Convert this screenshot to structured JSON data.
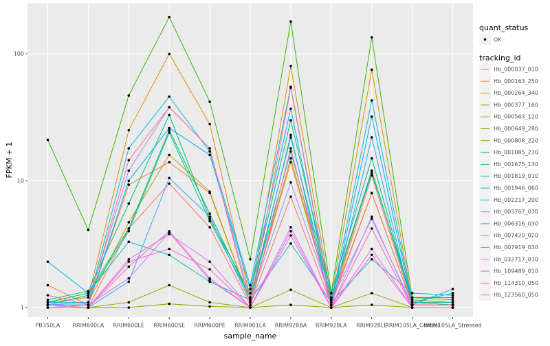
{
  "chart_data": {
    "type": "line",
    "log_y": true,
    "grid": true,
    "x_label": "sample_name",
    "y_label": "FPKM + 1",
    "categories": [
      "PB350LA",
      "RRIM600LA",
      "RRIM600LE",
      "RRIM600SE",
      "RRIM600PE",
      "RRIM901LA",
      "RRIM928BA",
      "RRIM928LA",
      "RRIM928LE",
      "RRIM105LA_Control",
      "RRIM105LA_Stressed"
    ],
    "ylim": [
      0.84,
      250
    ],
    "yticks": [
      1,
      10,
      100
    ],
    "shape_legend_title": "quant_status",
    "shape_legend_label": "OK",
    "legend_title": "tracking_id",
    "series": [
      {
        "name": "Hb_000037_010",
        "color": "#F8766D",
        "values": [
          1.05,
          1.0,
          4.2,
          9.5,
          4.3,
          1.05,
          7.5,
          1.05,
          8,
          1.05,
          1.05
        ]
      },
      {
        "name": "Hb_000163_250",
        "color": "#EA8331",
        "values": [
          1.5,
          1.05,
          9.3,
          14,
          8,
          1.1,
          14,
          1.1,
          8,
          1.05,
          1.05
        ]
      },
      {
        "name": "Hb_000264_340",
        "color": "#D89000",
        "values": [
          1.1,
          1.2,
          25,
          100,
          28,
          1.2,
          80,
          1.2,
          75,
          1.1,
          1.1
        ]
      },
      {
        "name": "Hb_000377_160",
        "color": "#C09B00",
        "values": [
          1.05,
          1.1,
          4.7,
          16,
          8.2,
          1.1,
          15,
          1.1,
          12,
          1.15,
          1.1
        ]
      },
      {
        "name": "Hb_000563_120",
        "color": "#A3A500",
        "values": [
          1.0,
          1.0,
          1.1,
          1.5,
          1.1,
          1.0,
          1.38,
          1.0,
          1.3,
          1.0,
          1.0
        ]
      },
      {
        "name": "Hb_000649_280",
        "color": "#7CAE00",
        "values": [
          1.0,
          1.0,
          1.0,
          1.07,
          1.02,
          1.0,
          1.05,
          1.0,
          1.05,
          1.0,
          1.0
        ]
      },
      {
        "name": "Hb_000808_220",
        "color": "#39B600",
        "values": [
          21,
          4.1,
          47,
          195,
          42,
          2.4,
          180,
          1.3,
          135,
          1.2,
          1.15
        ]
      },
      {
        "name": "Hb_001085_230",
        "color": "#00BB4E",
        "values": [
          1.1,
          1.3,
          4.2,
          25,
          5.5,
          1.2,
          22,
          1.2,
          11.5,
          1.2,
          1.2
        ]
      },
      {
        "name": "Hb_001675_130",
        "color": "#00BF7D",
        "values": [
          1.15,
          1.35,
          6.6,
          33,
          5,
          1.3,
          30,
          1.3,
          15,
          1.1,
          1.05
        ]
      },
      {
        "name": "Hb_001819_010",
        "color": "#00C1A3",
        "values": [
          1.05,
          1.25,
          4,
          24,
          4.8,
          1.2,
          17,
          1.2,
          12,
          1.1,
          1.1
        ]
      },
      {
        "name": "Hb_001946_060",
        "color": "#00BFC4",
        "values": [
          2.3,
          1.3,
          3.3,
          2.6,
          1.6,
          1.15,
          3.2,
          1.1,
          2.4,
          1.3,
          1.25
        ]
      },
      {
        "name": "Hb_002217_200",
        "color": "#00BAE0",
        "values": [
          1.1,
          1.1,
          18,
          46,
          17,
          1.5,
          55,
          1.1,
          43,
          1.1,
          1.3
        ]
      },
      {
        "name": "Hb_003767_010",
        "color": "#00B0F6",
        "values": [
          1.05,
          1.05,
          10,
          26,
          16,
          1.4,
          37,
          1.05,
          32,
          1.05,
          1.4
        ]
      },
      {
        "name": "Hb_006316_030",
        "color": "#35A2FF",
        "values": [
          1.0,
          1.0,
          1.6,
          10.5,
          5.2,
          1.1,
          23,
          1.0,
          22,
          1.0,
          1.0
        ]
      },
      {
        "name": "Hb_007420_020",
        "color": "#9590FF",
        "values": [
          1.05,
          1.1,
          12,
          38,
          18,
          1.15,
          9.7,
          1.15,
          5,
          1.05,
          1.05
        ]
      },
      {
        "name": "Hb_007919_030",
        "color": "#C77CFF",
        "values": [
          1.0,
          1.05,
          1.7,
          3.9,
          1.65,
          1.0,
          4.3,
          1.0,
          5.2,
          1.0,
          1.0
        ]
      },
      {
        "name": "Hb_032717_010",
        "color": "#E76BF3",
        "values": [
          1.0,
          1.0,
          2.4,
          3.8,
          2.3,
          1.0,
          3.7,
          1.0,
          2.9,
          1.0,
          1.0
        ]
      },
      {
        "name": "Hb_109489_010",
        "color": "#FA62DB",
        "values": [
          1.0,
          1.0,
          2.3,
          2.9,
          2.0,
          1.0,
          4,
          1.0,
          2.6,
          1.0,
          1.0
        ]
      },
      {
        "name": "Hb_114310_050",
        "color": "#FF62BC",
        "values": [
          1.0,
          1.0,
          2.1,
          4.0,
          1.7,
          1.0,
          18,
          1.0,
          4.2,
          1.0,
          1.0
        ]
      },
      {
        "name": "Hb_123560_050",
        "color": "#FF6C91",
        "values": [
          1.25,
          1.05,
          14.5,
          38,
          18,
          1.05,
          54,
          1.05,
          11,
          1.05,
          1.05
        ]
      }
    ]
  }
}
